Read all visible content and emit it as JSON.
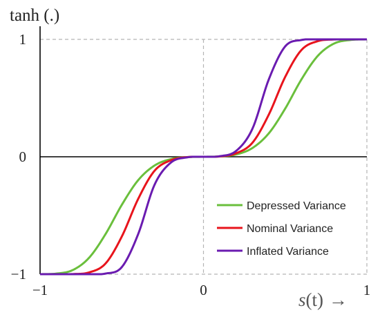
{
  "chart_data": {
    "type": "line",
    "ylabel": "tanh (.)",
    "xlabel_var": "s",
    "xlabel_paren": "(t)",
    "xlabel_arrow": "→",
    "xlim": [
      -1,
      1
    ],
    "ylim": [
      -1,
      1
    ],
    "x_ticks": [
      {
        "value": -1,
        "label": "−1"
      },
      {
        "value": 0,
        "label": "0"
      },
      {
        "value": 1,
        "label": "1"
      }
    ],
    "y_ticks": [
      {
        "value": 1,
        "label": "1"
      },
      {
        "value": 0,
        "label": "0"
      },
      {
        "value": -1,
        "label": "−1"
      }
    ],
    "grid": "dashed reference lines at x = -1, 0, 1 and y = -1, 1",
    "legend_position": "bottom-right",
    "x": [
      -1.0,
      -0.9,
      -0.8,
      -0.7,
      -0.6,
      -0.5,
      -0.4,
      -0.3,
      -0.2,
      -0.1,
      0.0,
      0.1,
      0.2,
      0.3,
      0.4,
      0.5,
      0.6,
      0.7,
      0.8,
      0.9,
      1.0
    ],
    "series": [
      {
        "name": "Depressed Variance",
        "color": "#6abf3c",
        "values": [
          -1.0,
          -0.995,
          -0.965,
          -0.86,
          -0.66,
          -0.41,
          -0.2,
          -0.075,
          -0.02,
          -0.003,
          0.0,
          0.003,
          0.02,
          0.075,
          0.2,
          0.41,
          0.66,
          0.86,
          0.965,
          0.995,
          1.0
        ]
      },
      {
        "name": "Nominal Variance",
        "color": "#e8141c",
        "values": [
          -1.0,
          -1.0,
          -0.999,
          -0.985,
          -0.91,
          -0.68,
          -0.36,
          -0.12,
          -0.03,
          -0.003,
          0.0,
          0.003,
          0.03,
          0.12,
          0.36,
          0.68,
          0.91,
          0.985,
          0.999,
          1.0,
          1.0
        ]
      },
      {
        "name": "Inflated Variance",
        "color": "#6a1bb0",
        "values": [
          -1.0,
          -1.0,
          -1.0,
          -1.0,
          -0.995,
          -0.94,
          -0.66,
          -0.24,
          -0.05,
          -0.005,
          0.0,
          0.005,
          0.05,
          0.24,
          0.66,
          0.94,
          0.995,
          1.0,
          1.0,
          1.0,
          1.0
        ]
      }
    ]
  }
}
